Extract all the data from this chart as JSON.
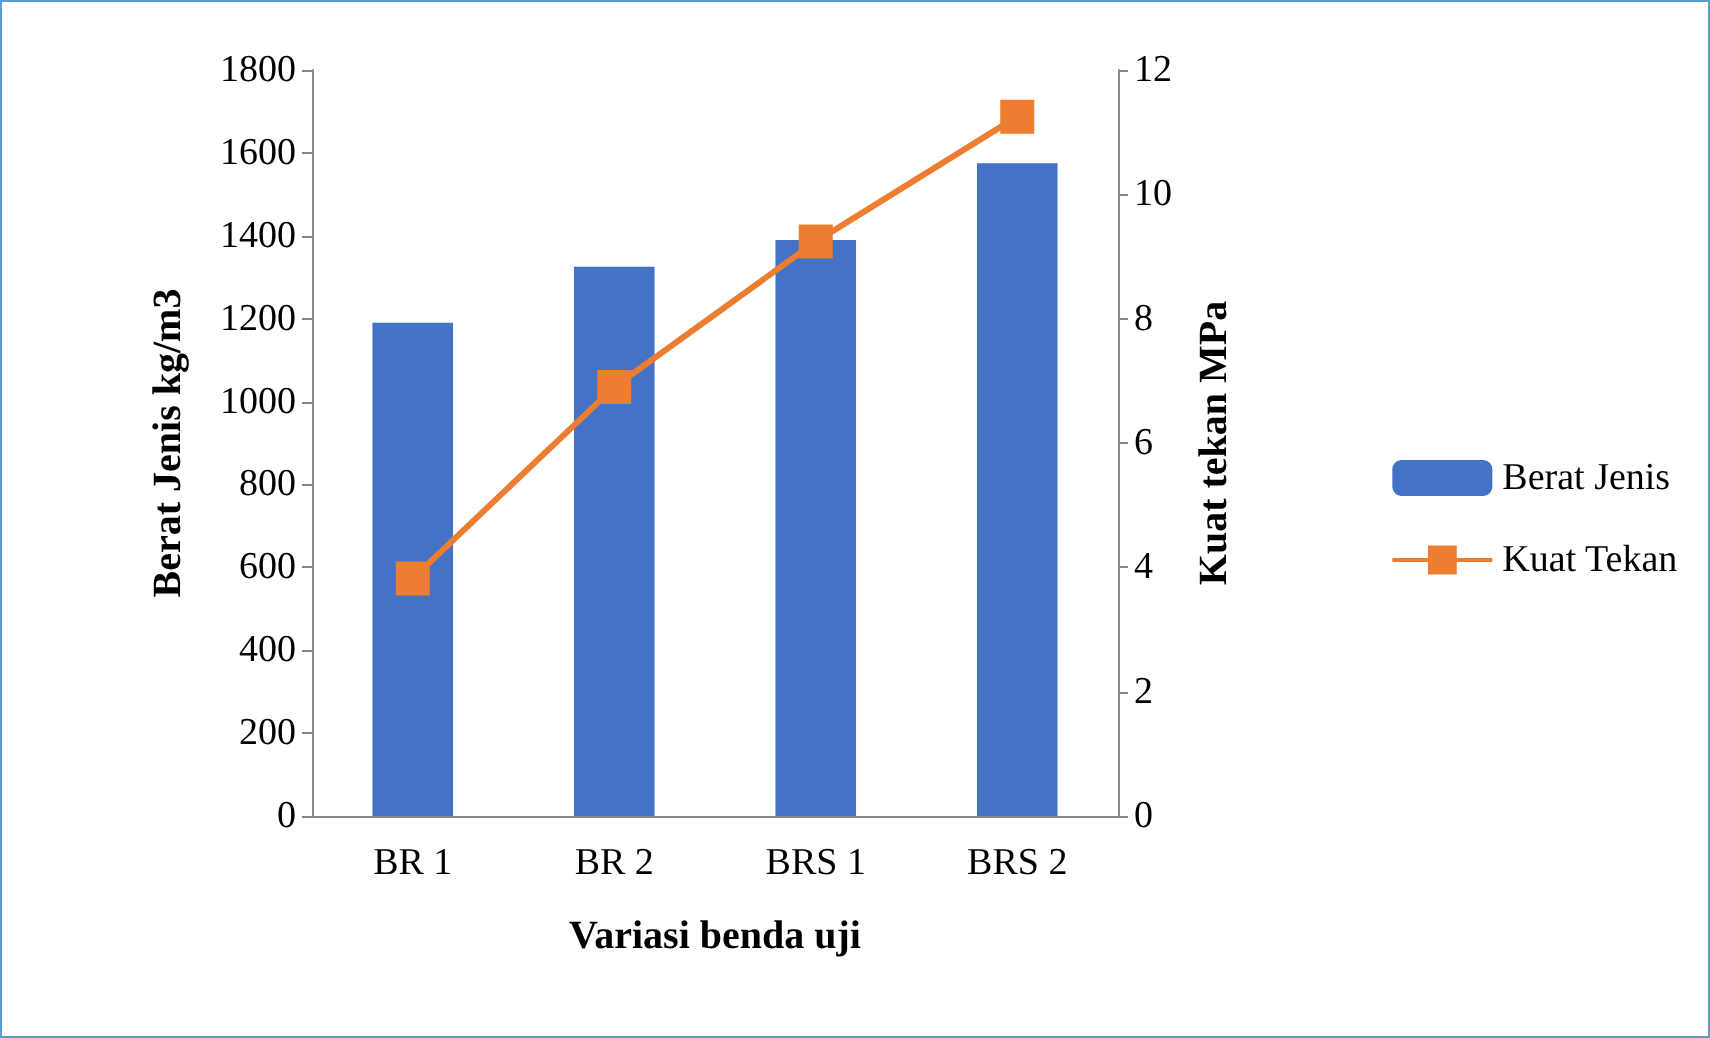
{
  "chart_data": {
    "type": "bar",
    "xlabel": "Variasi benda uji",
    "ylabel": "Berat Jenis kg/m3",
    "y2label": "Kuat tekan MPa",
    "categories": [
      "BR 1",
      "BR 2",
      "BRS 1",
      "BRS 2"
    ],
    "series": [
      {
        "name": "Berat Jenis",
        "color": "#4472c4",
        "values": [
          1190,
          1325,
          1390,
          1575
        ]
      },
      {
        "name": "Kuat Tekan",
        "type": "line",
        "axis": "y2",
        "color": "#ed7d31",
        "marker": "square",
        "values": [
          3.82,
          6.9,
          9.24,
          11.25
        ]
      }
    ],
    "ylim": [
      0,
      1800
    ],
    "yticks": [
      0,
      200,
      400,
      600,
      800,
      1000,
      1200,
      1400,
      1600,
      1800
    ],
    "y2lim": [
      0,
      12
    ],
    "y2ticks": [
      0,
      2,
      4,
      6,
      8,
      10,
      12
    ],
    "grid": false,
    "legend": "right"
  }
}
